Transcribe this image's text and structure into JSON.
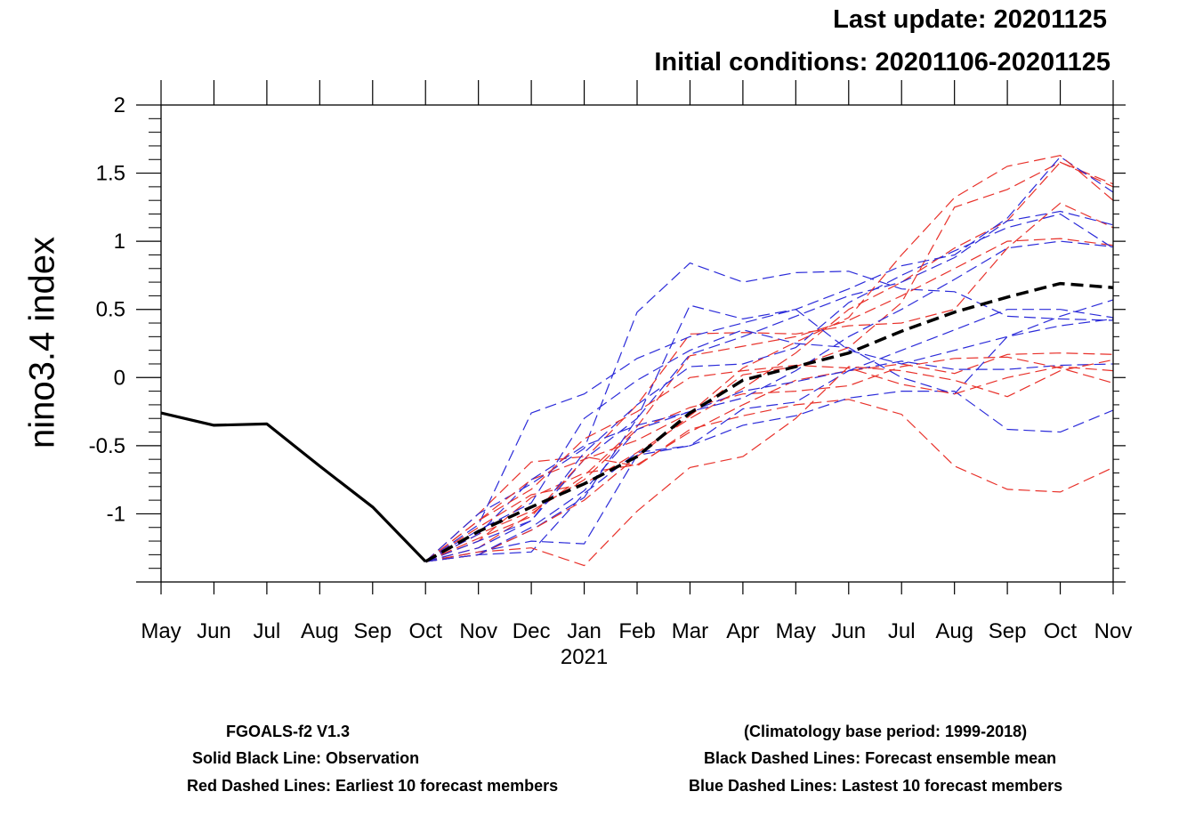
{
  "header": {
    "last_update": "Last update: 20201125",
    "initial_conditions": "Initial conditions: 20201106-20201125"
  },
  "notes": {
    "model": "FGOALS-f2 V1.3",
    "observation": "Solid Black Line: Observation",
    "red_members": "Red  Dashed Lines: Earliest 10 forecast members",
    "climatology": "(Climatology base period: 1999-2018)",
    "ensemble_mean": "Black Dashed Lines: Forecast ensemble mean",
    "blue_members": "Blue Dashed Lines: Lastest  10 forecast members"
  },
  "colors": {
    "observation": "#000000",
    "ensemble_mean": "#000000",
    "red_members": "#e8312a",
    "blue_members": "#2b2bd9"
  },
  "chart_data": {
    "type": "line",
    "ylabel": "nino3.4 index",
    "xlabel": "",
    "ylim": [
      -1.5,
      2
    ],
    "yticks": [
      2,
      1.5,
      1,
      0.5,
      0,
      -0.5,
      -1
    ],
    "ytick_labels": [
      "2",
      "1.5",
      "1",
      "0.5",
      "0",
      "-0.5",
      "-1"
    ],
    "categories": [
      "May",
      "Jun",
      "Jul",
      "Aug",
      "Sep",
      "Oct",
      "Nov",
      "Dec",
      "Jan",
      "Feb",
      "Mar",
      "Apr",
      "May",
      "Jun",
      "Jul",
      "Aug",
      "Sep",
      "Oct",
      "Nov"
    ],
    "year_label": "2021",
    "year_label_under": "Jan",
    "observation": [
      -0.26,
      -0.35,
      -0.34,
      -0.65,
      -0.95,
      -1.35
    ],
    "ensemble_mean": {
      "start_index": 5,
      "values": [
        -1.35,
        -1.13,
        -0.95,
        -0.78,
        -0.58,
        -0.26,
        -0.02,
        0.08,
        0.18,
        0.34,
        0.48,
        0.59,
        0.69,
        0.66
      ]
    },
    "red_members": {
      "start_index": 5,
      "values": [
        [
          -1.35,
          -1.0,
          -0.62,
          -0.58,
          -0.65,
          -0.38,
          -0.28,
          -0.2,
          -0.16,
          -0.27,
          -0.65,
          -0.82,
          -0.84,
          -0.66
        ],
        [
          -1.35,
          -1.2,
          -0.88,
          -0.7,
          -0.64,
          -0.4,
          -0.2,
          -0.02,
          0.05,
          0.1,
          0.03,
          0.17,
          0.18,
          0.17
        ],
        [
          -1.35,
          -1.05,
          -0.75,
          -0.6,
          -0.2,
          0.32,
          0.33,
          0.32,
          0.38,
          0.4,
          0.5,
          0.95,
          1.28,
          1.1
        ],
        [
          -1.35,
          -1.25,
          -1.0,
          -0.72,
          -0.36,
          0.16,
          0.23,
          0.3,
          0.42,
          0.6,
          0.8,
          1.0,
          1.02,
          0.97
        ],
        [
          -1.35,
          -1.15,
          -0.98,
          -0.75,
          -0.38,
          -0.22,
          -0.12,
          -0.1,
          -0.06,
          0.08,
          0.14,
          0.15,
          0.07,
          -0.04
        ],
        [
          -1.35,
          -1.28,
          -1.25,
          -1.38,
          -0.98,
          -0.66,
          -0.58,
          -0.3,
          0.08,
          0.05,
          -0.02,
          -0.14,
          0.05,
          0.13
        ],
        [
          -1.35,
          -1.1,
          -0.86,
          -0.78,
          -0.55,
          -0.3,
          -0.08,
          0.18,
          0.5,
          0.7,
          0.95,
          1.15,
          1.58,
          1.42
        ],
        [
          -1.35,
          -1.3,
          -1.12,
          -0.9,
          -0.58,
          -0.28,
          0.02,
          0.08,
          0.22,
          0.55,
          1.25,
          1.38,
          1.58,
          1.4
        ],
        [
          -1.35,
          -1.18,
          -1.02,
          -0.6,
          -0.46,
          -0.26,
          0.07,
          0.26,
          0.44,
          0.9,
          1.32,
          1.55,
          1.63,
          1.3
        ],
        [
          -1.35,
          -1.05,
          -0.82,
          -0.45,
          -0.25,
          0.0,
          0.05,
          0.09,
          0.07,
          -0.05,
          -0.12,
          0.0,
          0.08,
          0.05
        ]
      ]
    },
    "blue_members": {
      "start_index": 5,
      "values": [
        [
          -1.35,
          -1.0,
          -0.78,
          -0.52,
          0.48,
          0.84,
          0.7,
          0.77,
          0.78,
          0.65,
          0.63,
          0.45,
          0.43,
          0.42
        ],
        [
          -1.35,
          -1.3,
          -1.28,
          -0.85,
          -0.55,
          -0.5,
          -0.35,
          -0.28,
          -0.15,
          -0.1,
          -0.1,
          -0.38,
          -0.4,
          -0.24
        ],
        [
          -1.35,
          -1.12,
          -0.92,
          -0.3,
          -0.02,
          0.2,
          0.35,
          0.25,
          0.22,
          0.0,
          -0.12,
          0.3,
          0.45,
          0.57
        ],
        [
          -1.35,
          -1.28,
          -1.2,
          -1.22,
          -0.57,
          -0.5,
          -0.23,
          -0.18,
          0.05,
          0.12,
          0.06,
          0.06,
          0.09,
          0.1
        ],
        [
          -1.35,
          -1.15,
          -0.75,
          -0.5,
          -0.35,
          -0.25,
          -0.1,
          -0.03,
          0.05,
          0.2,
          0.35,
          0.5,
          0.5,
          0.44
        ],
        [
          -1.35,
          -1.25,
          -1.05,
          -0.55,
          -0.2,
          0.08,
          0.1,
          0.22,
          0.55,
          0.75,
          0.93,
          1.1,
          1.2,
          0.95
        ],
        [
          -1.35,
          -1.3,
          -1.12,
          -0.88,
          -0.3,
          0.17,
          0.3,
          0.45,
          0.6,
          0.7,
          0.88,
          1.15,
          1.22,
          1.12
        ],
        [
          -1.35,
          -1.2,
          -1.05,
          -0.6,
          -0.3,
          0.53,
          0.43,
          0.5,
          0.65,
          0.82,
          0.9,
          1.17,
          1.62,
          1.36
        ],
        [
          -1.35,
          -1.08,
          -0.26,
          -0.12,
          0.14,
          0.3,
          0.4,
          0.5,
          0.2,
          0.1,
          0.2,
          0.3,
          0.38,
          0.43
        ],
        [
          -1.35,
          -1.3,
          -1.1,
          -0.83,
          -0.38,
          -0.25,
          -0.15,
          0.05,
          0.3,
          0.5,
          0.72,
          0.95,
          1.0,
          0.96
        ]
      ]
    },
    "grid": false,
    "legend": "none"
  }
}
